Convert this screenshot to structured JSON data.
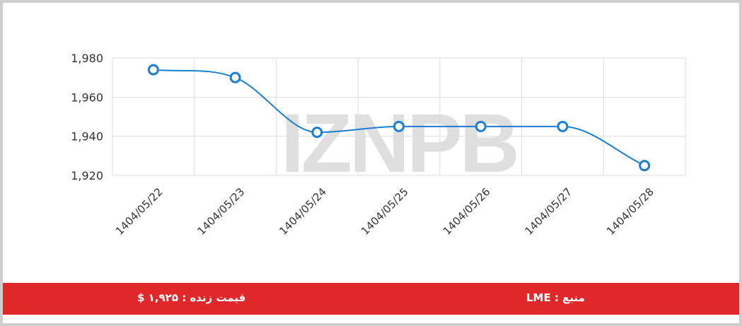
{
  "chart_data": {
    "type": "line",
    "categories": [
      "1404/05/22",
      "1404/05/23",
      "1404/05/24",
      "1404/05/25",
      "1404/05/26",
      "1404/05/27",
      "1404/05/28"
    ],
    "values": [
      1974,
      1970,
      1942,
      1945,
      1945,
      1945,
      1925
    ],
    "yticks": [
      "1,980",
      "1,960",
      "1,940",
      "1,920"
    ],
    "ylim": [
      1920,
      1980
    ],
    "title": "",
    "xlabel": "",
    "ylabel": "",
    "grid": true,
    "line_color": "#1a7fd4",
    "watermark": "IZNPB"
  },
  "footer": {
    "source": "منبع : LME",
    "price": "قیمت زنده : ۱,۹۲۵ $",
    "background_color": "#e0282b"
  }
}
